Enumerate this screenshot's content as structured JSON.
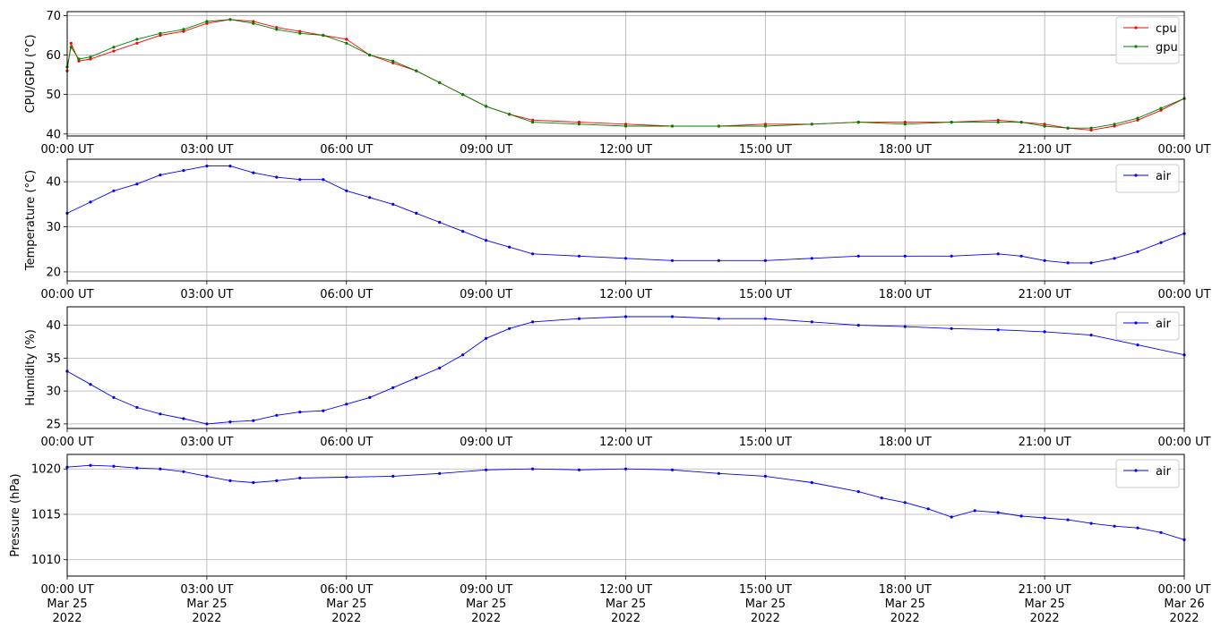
{
  "x_tick_labels": [
    "00:00 UT",
    "03:00 UT",
    "06:00 UT",
    "09:00 UT",
    "12:00 UT",
    "15:00 UT",
    "18:00 UT",
    "21:00 UT",
    "00:00 UT"
  ],
  "x_tick_dates": [
    "Mar 25",
    "Mar 25",
    "Mar 25",
    "Mar 25",
    "Mar 25",
    "Mar 25",
    "Mar 25",
    "Mar 25",
    "Mar 26"
  ],
  "x_tick_years": [
    "2022",
    "2022",
    "2022",
    "2022",
    "2022",
    "2022",
    "2022",
    "2022",
    "2022"
  ],
  "chart_data": [
    {
      "type": "line",
      "ylabel": "CPU/GPU (°C)",
      "ylim": [
        39.5,
        71
      ],
      "yticks": [
        40,
        50,
        60,
        70
      ],
      "grid": true,
      "legend": "top-right",
      "x": [
        "2022-03-25 00:00",
        "2022-03-25 00:05",
        "2022-03-25 00:15",
        "2022-03-25 00:30",
        "2022-03-25 01:00",
        "2022-03-25 01:30",
        "2022-03-25 02:00",
        "2022-03-25 02:30",
        "2022-03-25 03:00",
        "2022-03-25 03:30",
        "2022-03-25 04:00",
        "2022-03-25 04:30",
        "2022-03-25 05:00",
        "2022-03-25 05:30",
        "2022-03-25 06:00",
        "2022-03-25 06:30",
        "2022-03-25 07:00",
        "2022-03-25 07:30",
        "2022-03-25 08:00",
        "2022-03-25 08:30",
        "2022-03-25 09:00",
        "2022-03-25 09:30",
        "2022-03-25 10:00",
        "2022-03-25 11:00",
        "2022-03-25 12:00",
        "2022-03-25 13:00",
        "2022-03-25 14:00",
        "2022-03-25 15:00",
        "2022-03-25 16:00",
        "2022-03-25 17:00",
        "2022-03-25 18:00",
        "2022-03-25 19:00",
        "2022-03-25 20:00",
        "2022-03-25 20:30",
        "2022-03-25 21:00",
        "2022-03-25 21:30",
        "2022-03-25 22:00",
        "2022-03-25 22:30",
        "2022-03-25 23:00",
        "2022-03-25 23:30",
        "2022-03-26 00:00"
      ],
      "series": [
        {
          "name": "cpu",
          "color": "#ff0000",
          "values": [
            56,
            63,
            58.5,
            59,
            61,
            63,
            65,
            66,
            68,
            69,
            68.5,
            67,
            66,
            65,
            64,
            60,
            58,
            56,
            53,
            50,
            47,
            45,
            43.5,
            43,
            42.5,
            42,
            42,
            42.5,
            42.5,
            43,
            43,
            43,
            43.5,
            43,
            42.5,
            41.5,
            41,
            42,
            43.5,
            46,
            49
          ]
        },
        {
          "name": "gpu",
          "color": "#008000",
          "values": [
            57,
            62,
            59,
            59.5,
            62,
            64,
            65.5,
            66.5,
            68.5,
            69,
            68,
            66.5,
            65.5,
            65,
            63,
            60,
            58.5,
            56,
            53,
            50,
            47,
            45,
            43,
            42.5,
            42,
            42,
            42,
            42,
            42.5,
            43,
            42.5,
            43,
            43,
            43,
            42,
            41.5,
            41.5,
            42.5,
            44,
            46.5,
            49
          ]
        }
      ]
    },
    {
      "type": "line",
      "ylabel": "Temperature (°C)",
      "ylim": [
        18,
        45
      ],
      "yticks": [
        20,
        30,
        40
      ],
      "grid": true,
      "legend": "top-right",
      "x": [
        "2022-03-25 00:00",
        "2022-03-25 00:30",
        "2022-03-25 01:00",
        "2022-03-25 01:30",
        "2022-03-25 02:00",
        "2022-03-25 02:30",
        "2022-03-25 03:00",
        "2022-03-25 03:30",
        "2022-03-25 04:00",
        "2022-03-25 04:30",
        "2022-03-25 05:00",
        "2022-03-25 05:30",
        "2022-03-25 06:00",
        "2022-03-25 06:30",
        "2022-03-25 07:00",
        "2022-03-25 07:30",
        "2022-03-25 08:00",
        "2022-03-25 08:30",
        "2022-03-25 09:00",
        "2022-03-25 09:30",
        "2022-03-25 10:00",
        "2022-03-25 11:00",
        "2022-03-25 12:00",
        "2022-03-25 13:00",
        "2022-03-25 14:00",
        "2022-03-25 15:00",
        "2022-03-25 16:00",
        "2022-03-25 17:00",
        "2022-03-25 18:00",
        "2022-03-25 19:00",
        "2022-03-25 20:00",
        "2022-03-25 20:30",
        "2022-03-25 21:00",
        "2022-03-25 21:30",
        "2022-03-25 22:00",
        "2022-03-25 22:30",
        "2022-03-25 23:00",
        "2022-03-25 23:30",
        "2022-03-26 00:00"
      ],
      "series": [
        {
          "name": "air",
          "color": "#0000ff",
          "values": [
            33,
            35.5,
            38,
            39.5,
            41.5,
            42.5,
            43.5,
            43.5,
            42,
            41,
            40.5,
            40.5,
            38,
            36.5,
            35,
            33,
            31,
            29,
            27,
            25.5,
            24,
            23.5,
            23,
            22.5,
            22.5,
            22.5,
            23,
            23.5,
            23.5,
            23.5,
            24,
            23.5,
            22.5,
            22,
            22,
            23,
            24.5,
            26.5,
            28.5
          ]
        }
      ]
    },
    {
      "type": "line",
      "ylabel": "Humidity (%)",
      "ylim": [
        24.3,
        42.8
      ],
      "yticks": [
        25,
        30,
        35,
        40
      ],
      "grid": true,
      "legend": "top-right",
      "x": [
        "2022-03-25 00:00",
        "2022-03-25 00:30",
        "2022-03-25 01:00",
        "2022-03-25 01:30",
        "2022-03-25 02:00",
        "2022-03-25 02:30",
        "2022-03-25 03:00",
        "2022-03-25 03:30",
        "2022-03-25 04:00",
        "2022-03-25 04:30",
        "2022-03-25 05:00",
        "2022-03-25 05:30",
        "2022-03-25 06:00",
        "2022-03-25 06:30",
        "2022-03-25 07:00",
        "2022-03-25 07:30",
        "2022-03-25 08:00",
        "2022-03-25 08:30",
        "2022-03-25 09:00",
        "2022-03-25 09:30",
        "2022-03-25 10:00",
        "2022-03-25 11:00",
        "2022-03-25 12:00",
        "2022-03-25 13:00",
        "2022-03-25 14:00",
        "2022-03-25 15:00",
        "2022-03-25 16:00",
        "2022-03-25 17:00",
        "2022-03-25 18:00",
        "2022-03-25 19:00",
        "2022-03-25 20:00",
        "2022-03-25 21:00",
        "2022-03-25 22:00",
        "2022-03-25 23:00",
        "2022-03-26 00:00"
      ],
      "series": [
        {
          "name": "air",
          "color": "#0000ff",
          "values": [
            33,
            31,
            29,
            27.5,
            26.5,
            25.8,
            25,
            25.3,
            25.5,
            26.3,
            26.8,
            27,
            28,
            29,
            30.5,
            32,
            33.5,
            35.5,
            38,
            39.5,
            40.5,
            41,
            41.3,
            41.3,
            41,
            41,
            40.5,
            40,
            39.8,
            39.5,
            39.3,
            39,
            38.5,
            37,
            35.5
          ]
        }
      ]
    },
    {
      "type": "line",
      "ylabel": "Pressure (hPa)",
      "ylim": [
        1008.2,
        1021.6
      ],
      "yticks": [
        1010,
        1015,
        1020
      ],
      "grid": true,
      "legend": "top-right",
      "x": [
        "2022-03-25 00:00",
        "2022-03-25 00:30",
        "2022-03-25 01:00",
        "2022-03-25 01:30",
        "2022-03-25 02:00",
        "2022-03-25 02:30",
        "2022-03-25 03:00",
        "2022-03-25 03:30",
        "2022-03-25 04:00",
        "2022-03-25 04:30",
        "2022-03-25 05:00",
        "2022-03-25 06:00",
        "2022-03-25 07:00",
        "2022-03-25 08:00",
        "2022-03-25 09:00",
        "2022-03-25 10:00",
        "2022-03-25 11:00",
        "2022-03-25 12:00",
        "2022-03-25 13:00",
        "2022-03-25 14:00",
        "2022-03-25 15:00",
        "2022-03-25 16:00",
        "2022-03-25 17:00",
        "2022-03-25 17:30",
        "2022-03-25 18:00",
        "2022-03-25 18:30",
        "2022-03-25 19:00",
        "2022-03-25 19:30",
        "2022-03-25 20:00",
        "2022-03-25 20:30",
        "2022-03-25 21:00",
        "2022-03-25 21:30",
        "2022-03-25 22:00",
        "2022-03-25 22:30",
        "2022-03-25 23:00",
        "2022-03-25 23:30",
        "2022-03-26 00:00"
      ],
      "series": [
        {
          "name": "air",
          "color": "#0000ff",
          "values": [
            1020.2,
            1020.4,
            1020.3,
            1020.1,
            1020,
            1019.7,
            1019.2,
            1018.7,
            1018.5,
            1018.7,
            1019,
            1019.1,
            1019.2,
            1019.5,
            1019.9,
            1020,
            1019.9,
            1020,
            1019.9,
            1019.5,
            1019.2,
            1018.5,
            1017.5,
            1016.8,
            1016.3,
            1015.6,
            1014.7,
            1015.4,
            1015.2,
            1014.8,
            1014.6,
            1014.4,
            1014,
            1013.7,
            1013.5,
            1013,
            1012.2
          ]
        }
      ]
    }
  ]
}
